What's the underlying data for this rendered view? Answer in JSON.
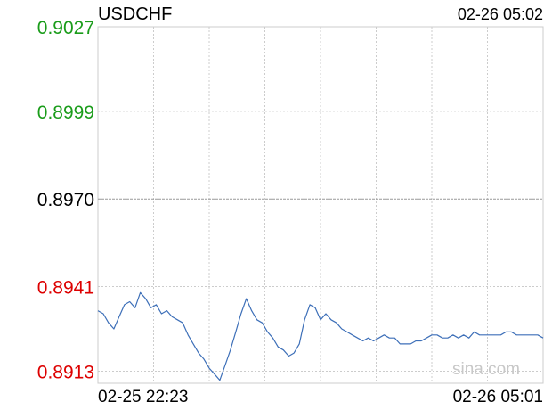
{
  "header": {
    "symbol": "USDCHF",
    "timestamp": "02-26 05:02"
  },
  "watermark": "sina.com",
  "colors": {
    "up": "#1a9c1a",
    "down": "#dd0000",
    "neutral": "#000000",
    "line": "#3d6fb8",
    "grid": "#cccccc",
    "watermark": "#c8c8c8"
  },
  "chart_data": {
    "type": "line",
    "title": "USDCHF",
    "y_ticks": [
      {
        "label": "0.9027",
        "value": 0.9027,
        "trend": "up"
      },
      {
        "label": "0.8999",
        "value": 0.8999,
        "trend": "up"
      },
      {
        "label": "0.8970",
        "value": 0.897,
        "trend": "neutral"
      },
      {
        "label": "0.8941",
        "value": 0.8941,
        "trend": "down"
      },
      {
        "label": "0.8913",
        "value": 0.8913,
        "trend": "down"
      }
    ],
    "reference_value": 0.897,
    "ylim": [
      0.8909,
      0.9027
    ],
    "x_labels": {
      "start": "02-25 22:23",
      "end": "02-26 05:01"
    },
    "grid": true,
    "series": [
      {
        "values": [
          0.8933,
          0.8932,
          0.8929,
          0.8927,
          0.8931,
          0.8935,
          0.8936,
          0.8934,
          0.8939,
          0.8937,
          0.8934,
          0.8935,
          0.8932,
          0.8933,
          0.8931,
          0.893,
          0.8929,
          0.8925,
          0.8922,
          0.8919,
          0.8917,
          0.8914,
          0.8912,
          0.891,
          0.8915,
          0.892,
          0.8926,
          0.8932,
          0.8937,
          0.8933,
          0.893,
          0.8929,
          0.8926,
          0.8924,
          0.8921,
          0.892,
          0.8918,
          0.8919,
          0.8922,
          0.893,
          0.8935,
          0.8934,
          0.893,
          0.8932,
          0.893,
          0.8929,
          0.8927,
          0.8926,
          0.8925,
          0.8924,
          0.8923,
          0.8924,
          0.8923,
          0.8924,
          0.8925,
          0.8924,
          0.8924,
          0.8922,
          0.8922,
          0.8922,
          0.8923,
          0.8923,
          0.8924,
          0.8925,
          0.8925,
          0.8924,
          0.8924,
          0.8925,
          0.8924,
          0.8925,
          0.8924,
          0.8926,
          0.8925,
          0.8925,
          0.8925,
          0.8925,
          0.8925,
          0.8926,
          0.8926,
          0.8925,
          0.8925,
          0.8925,
          0.8925,
          0.8925,
          0.8924
        ]
      }
    ]
  }
}
